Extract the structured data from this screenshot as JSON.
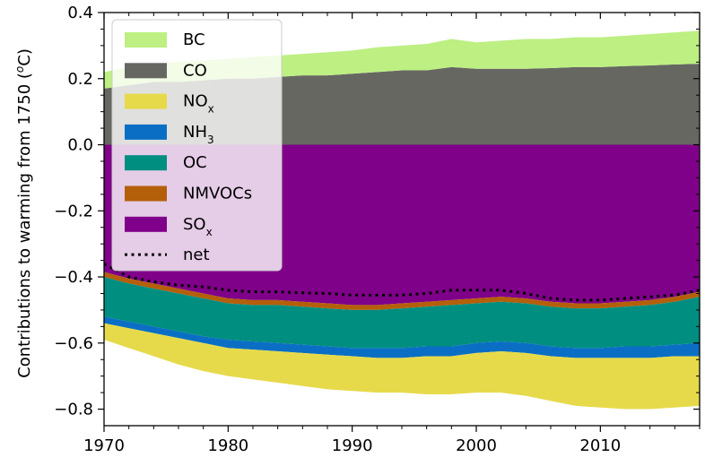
{
  "chart_data": {
    "type": "area",
    "title": "",
    "xlabel": "",
    "ylabel": "Contributions to warming from 1750 (°C)",
    "ylabel_parts": {
      "prefix": "Contributions to warming from 1750 (",
      "superscript": "o",
      "suffix": "C)"
    },
    "xlim": [
      1970,
      2018
    ],
    "ylim": [
      -0.85,
      0.4
    ],
    "x_ticks": [
      "1970",
      "1980",
      "1990",
      "2000",
      "2010"
    ],
    "y_ticks": [
      "0.4",
      "0.2",
      "0.0",
      "−0.2",
      "−0.4",
      "−0.6",
      "−0.8"
    ],
    "grid": false,
    "legend_position": "top-left",
    "x": [
      1970,
      1972,
      1974,
      1976,
      1978,
      1980,
      1982,
      1984,
      1986,
      1988,
      1990,
      1992,
      1994,
      1996,
      1998,
      2000,
      2002,
      2004,
      2006,
      2008,
      2010,
      2012,
      2014,
      2016,
      2018
    ],
    "positive_series": [
      {
        "name": "CO",
        "color": "#676762",
        "top": [
          0.17,
          0.18,
          0.19,
          0.19,
          0.195,
          0.2,
          0.2,
          0.205,
          0.21,
          0.21,
          0.215,
          0.22,
          0.225,
          0.225,
          0.235,
          0.23,
          0.23,
          0.23,
          0.232,
          0.235,
          0.235,
          0.238,
          0.24,
          0.243,
          0.245
        ]
      },
      {
        "name": "BC",
        "color": "#bdef82",
        "top": [
          0.22,
          0.235,
          0.245,
          0.25,
          0.255,
          0.26,
          0.265,
          0.27,
          0.275,
          0.28,
          0.285,
          0.295,
          0.3,
          0.305,
          0.32,
          0.31,
          0.315,
          0.32,
          0.32,
          0.325,
          0.325,
          0.33,
          0.335,
          0.34,
          0.345
        ]
      }
    ],
    "negative_series": [
      {
        "name": "SOx",
        "color": "#7f0089",
        "bottom": [
          -0.385,
          -0.405,
          -0.42,
          -0.435,
          -0.45,
          -0.465,
          -0.47,
          -0.47,
          -0.475,
          -0.48,
          -0.485,
          -0.485,
          -0.48,
          -0.475,
          -0.47,
          -0.465,
          -0.46,
          -0.465,
          -0.475,
          -0.48,
          -0.48,
          -0.475,
          -0.47,
          -0.46,
          -0.445
        ]
      },
      {
        "name": "NMVOCs",
        "color": "#b45f0a",
        "bottom": [
          -0.4,
          -0.42,
          -0.435,
          -0.45,
          -0.465,
          -0.48,
          -0.485,
          -0.485,
          -0.49,
          -0.495,
          -0.5,
          -0.5,
          -0.495,
          -0.49,
          -0.485,
          -0.48,
          -0.475,
          -0.48,
          -0.49,
          -0.495,
          -0.495,
          -0.49,
          -0.485,
          -0.475,
          -0.46
        ]
      },
      {
        "name": "OC",
        "color": "#008e80",
        "bottom": [
          -0.52,
          -0.535,
          -0.55,
          -0.565,
          -0.58,
          -0.59,
          -0.595,
          -0.6,
          -0.605,
          -0.61,
          -0.615,
          -0.615,
          -0.615,
          -0.61,
          -0.61,
          -0.6,
          -0.595,
          -0.6,
          -0.61,
          -0.615,
          -0.615,
          -0.61,
          -0.61,
          -0.605,
          -0.6
        ]
      },
      {
        "name": "NH3",
        "color": "#0a6fc4",
        "bottom": [
          -0.54,
          -0.555,
          -0.57,
          -0.585,
          -0.6,
          -0.615,
          -0.62,
          -0.625,
          -0.63,
          -0.635,
          -0.64,
          -0.645,
          -0.645,
          -0.64,
          -0.64,
          -0.63,
          -0.625,
          -0.63,
          -0.64,
          -0.645,
          -0.645,
          -0.645,
          -0.645,
          -0.64,
          -0.64
        ]
      },
      {
        "name": "NOx",
        "color": "#e6da4b",
        "bottom": [
          -0.59,
          -0.615,
          -0.64,
          -0.665,
          -0.685,
          -0.7,
          -0.71,
          -0.72,
          -0.73,
          -0.74,
          -0.745,
          -0.75,
          -0.75,
          -0.755,
          -0.755,
          -0.75,
          -0.75,
          -0.76,
          -0.775,
          -0.79,
          -0.795,
          -0.8,
          -0.8,
          -0.795,
          -0.79
        ]
      }
    ],
    "net": {
      "name": "net",
      "values": [
        -0.36,
        -0.4,
        -0.415,
        -0.425,
        -0.43,
        -0.44,
        -0.445,
        -0.445,
        -0.448,
        -0.45,
        -0.455,
        -0.455,
        -0.455,
        -0.45,
        -0.44,
        -0.44,
        -0.44,
        -0.45,
        -0.465,
        -0.47,
        -0.47,
        -0.465,
        -0.46,
        -0.455,
        -0.44
      ]
    },
    "legend": [
      {
        "key": "BC",
        "label": "BC",
        "sub": "",
        "color": "#bdef82",
        "kind": "patch"
      },
      {
        "key": "CO",
        "label": "CO",
        "sub": "",
        "color": "#676762",
        "kind": "patch"
      },
      {
        "key": "NOx",
        "label": "NO",
        "sub": "x",
        "color": "#e6da4b",
        "kind": "patch"
      },
      {
        "key": "NH3",
        "label": "NH",
        "sub": "3",
        "color": "#0a6fc4",
        "kind": "patch"
      },
      {
        "key": "OC",
        "label": "OC",
        "sub": "",
        "color": "#008e80",
        "kind": "patch"
      },
      {
        "key": "NMVOCs",
        "label": "NMVOCs",
        "sub": "",
        "color": "#b45f0a",
        "kind": "patch"
      },
      {
        "key": "SOx",
        "label": "SO",
        "sub": "x",
        "color": "#7f0089",
        "kind": "patch"
      },
      {
        "key": "net",
        "label": "net",
        "sub": "",
        "color": "#000000",
        "kind": "line"
      }
    ]
  }
}
